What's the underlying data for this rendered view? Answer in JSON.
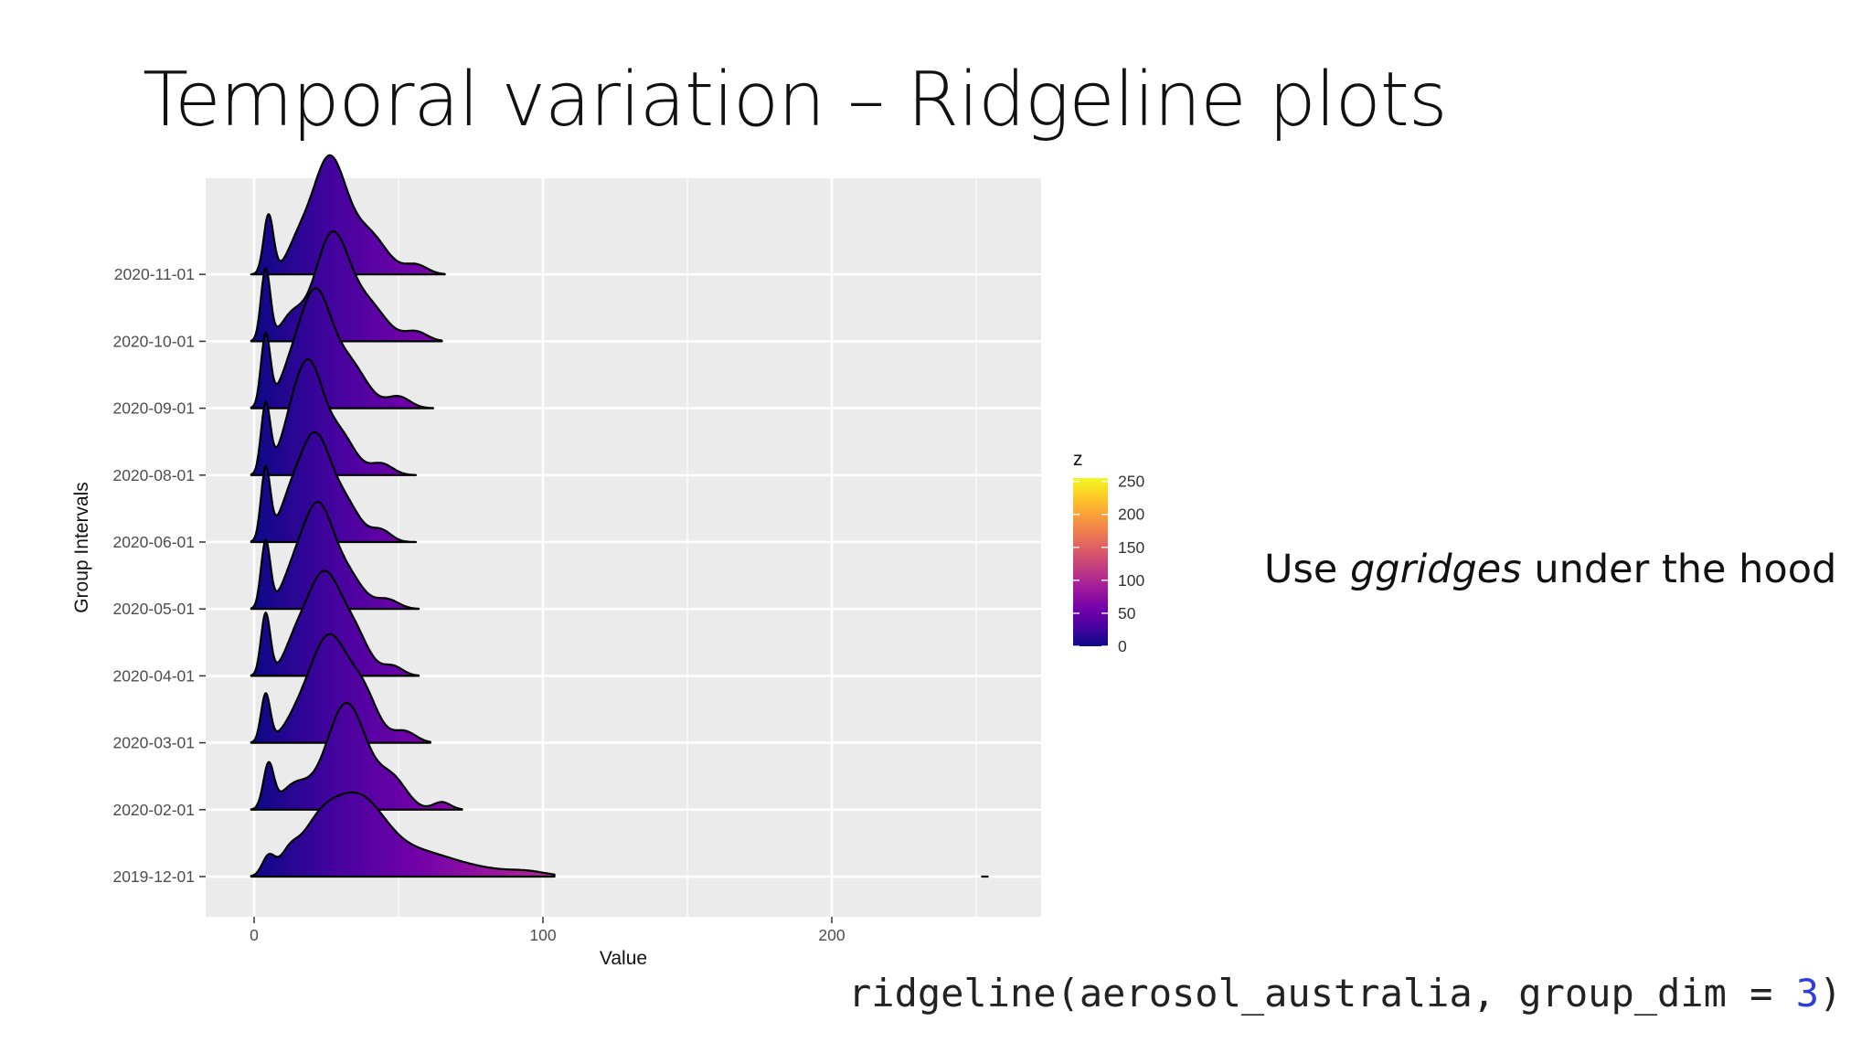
{
  "slide": {
    "title": "Temporal variation – Ridgeline plots",
    "note_prefix": "Use ",
    "note_emphasis": "ggridges",
    "note_suffix": " under the hood",
    "code_prefix": "ridgeline(aerosol_australia, group_dim = ",
    "code_number": "3",
    "code_suffix": ")"
  },
  "chart_data": {
    "type": "ridgeline",
    "title": "",
    "xlabel": "Value",
    "ylabel": "Group Intervals",
    "xlim": [
      -15,
      270
    ],
    "x_ticks": [
      0,
      100,
      200
    ],
    "grid": true,
    "legend_placement": "right",
    "colorbar": {
      "title": "z",
      "ticks": [
        0,
        50,
        100,
        150,
        200,
        250
      ],
      "range": [
        0,
        255
      ],
      "palette": [
        "#0d0887",
        "#46039f",
        "#7201a8",
        "#9c179e",
        "#bd3786",
        "#d8576b",
        "#ed7953",
        "#fb9f3a",
        "#fdca26",
        "#f0f921"
      ]
    },
    "colors": {
      "panel": "#ebebeb",
      "grid": "#ffffff",
      "outline": "#000000"
    },
    "groups": [
      {
        "label": "2019-12-01",
        "x_end": 104,
        "peaks": [
          [
            5,
            2.2,
            0.2
          ],
          [
            12,
            3,
            0.15
          ],
          [
            22,
            7,
            0.45
          ],
          [
            36,
            9,
            0.75
          ],
          [
            55,
            12,
            0.22
          ],
          [
            75,
            15,
            0.08
          ],
          [
            95,
            6,
            0.03
          ]
        ]
      },
      {
        "label": "2020-02-01",
        "x_end": 72,
        "peaks": [
          [
            5,
            1.8,
            0.45
          ],
          [
            14,
            5,
            0.25
          ],
          [
            32,
            7,
            1.12
          ],
          [
            48,
            5,
            0.3
          ],
          [
            65,
            3,
            0.08
          ]
        ]
      },
      {
        "label": "2020-03-01",
        "x_end": 61,
        "peaks": [
          [
            4,
            1.6,
            0.5
          ],
          [
            15,
            5,
            0.2
          ],
          [
            26,
            6.5,
            1.1
          ],
          [
            38,
            5,
            0.45
          ],
          [
            52,
            4,
            0.12
          ]
        ]
      },
      {
        "label": "2020-04-01",
        "x_end": 57,
        "peaks": [
          [
            4,
            1.6,
            0.65
          ],
          [
            14,
            4,
            0.25
          ],
          [
            24,
            6,
            1.06
          ],
          [
            35,
            5,
            0.38
          ],
          [
            48,
            3.5,
            0.1
          ]
        ]
      },
      {
        "label": "2020-05-01",
        "x_end": 57,
        "peaks": [
          [
            4,
            1.6,
            0.7
          ],
          [
            13,
            4,
            0.25
          ],
          [
            22,
            5.5,
            1.08
          ],
          [
            33,
            5,
            0.3
          ],
          [
            46,
            4,
            0.1
          ]
        ]
      },
      {
        "label": "2020-06-01",
        "x_end": 56,
        "peaks": [
          [
            4,
            1.6,
            0.75
          ],
          [
            12,
            4,
            0.3
          ],
          [
            21,
            5.5,
            1.1
          ],
          [
            32,
            5,
            0.35
          ],
          [
            44,
            3.5,
            0.12
          ]
        ]
      },
      {
        "label": "2020-08-01",
        "x_end": 56,
        "peaks": [
          [
            4,
            1.6,
            0.72
          ],
          [
            12,
            4,
            0.28
          ],
          [
            19,
            5,
            1.12
          ],
          [
            30,
            5,
            0.4
          ],
          [
            44,
            4,
            0.12
          ]
        ]
      },
      {
        "label": "2020-09-01",
        "x_end": 62,
        "peaks": [
          [
            4,
            1.6,
            0.75
          ],
          [
            12,
            4,
            0.25
          ],
          [
            21,
            5.5,
            1.18
          ],
          [
            33,
            6,
            0.45
          ],
          [
            50,
            4,
            0.12
          ]
        ]
      },
      {
        "label": "2020-10-01",
        "x_end": 65,
        "peaks": [
          [
            4,
            1.6,
            0.75
          ],
          [
            13,
            4,
            0.25
          ],
          [
            27,
            6,
            1.12
          ],
          [
            40,
            6,
            0.35
          ],
          [
            56,
            4,
            0.1
          ]
        ]
      },
      {
        "label": "2020-11-01",
        "x_end": 66,
        "peaks": [
          [
            5,
            1.7,
            0.62
          ],
          [
            15,
            4,
            0.25
          ],
          [
            26,
            6,
            1.22
          ],
          [
            40,
            6,
            0.4
          ],
          [
            56,
            4,
            0.1
          ]
        ]
      }
    ],
    "outlier_mark": {
      "label": "2019-12-01",
      "x": 253
    }
  }
}
